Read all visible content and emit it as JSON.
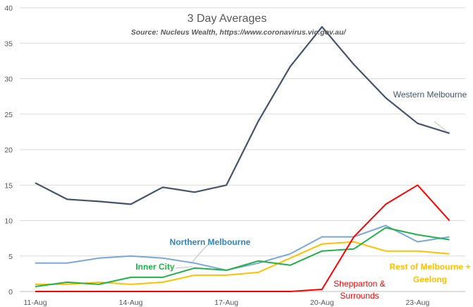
{
  "chart_data": {
    "type": "line",
    "title": "3 Day Averages",
    "subtitle": "Source: Nucleus Wealth, https://www.coronavirus.vic.gov.au/",
    "xlabel": "",
    "ylabel": "",
    "ylim": [
      0,
      40
    ],
    "yticks": [
      "0",
      "5",
      "10",
      "15",
      "20",
      "25",
      "30",
      "35",
      "40"
    ],
    "x_tick_labels": [
      "11-Aug",
      "14-Aug",
      "17-Aug",
      "20-Aug",
      "23-Aug"
    ],
    "x": [
      "11-Aug",
      "12-Aug",
      "13-Aug",
      "14-Aug",
      "15-Aug",
      "16-Aug",
      "17-Aug",
      "18-Aug",
      "19-Aug",
      "20-Aug",
      "21-Aug",
      "22-Aug",
      "23-Aug",
      "24-Aug"
    ],
    "grid": true,
    "legend": "none (direct labels)",
    "series": [
      {
        "name": "Western Melbourne",
        "color": "#44546a",
        "values": [
          15.3,
          13.0,
          12.7,
          12.3,
          14.7,
          14.0,
          15.0,
          24.0,
          31.7,
          37.3,
          32.0,
          27.3,
          23.7,
          22.3
        ]
      },
      {
        "name": "Northern Melbourne",
        "color": "#7ba7d7",
        "values": [
          4.0,
          4.0,
          4.7,
          5.0,
          4.7,
          4.0,
          3.0,
          4.0,
          5.3,
          7.7,
          7.7,
          9.3,
          7.0,
          7.7
        ]
      },
      {
        "name": "Inner City",
        "color": "#22b04b",
        "values": [
          0.7,
          1.3,
          1.0,
          2.0,
          2.0,
          3.3,
          3.0,
          4.3,
          3.7,
          5.7,
          6.0,
          9.0,
          8.0,
          7.3
        ]
      },
      {
        "name": "Rest of Melbourne + Geelong",
        "label_lines": [
          "Rest of Melbourne +",
          "Geelong"
        ],
        "color": "#ffc000",
        "values": [
          1.0,
          1.0,
          1.3,
          1.0,
          1.3,
          2.3,
          2.3,
          2.7,
          4.7,
          6.7,
          7.0,
          5.7,
          5.7,
          5.3
        ]
      },
      {
        "name": "Shepparton & Surrounds",
        "label_lines": [
          "Shepparton &",
          "Surrounds"
        ],
        "color": "#ff0000",
        "values": [
          0,
          0,
          0,
          0,
          0,
          0,
          0,
          0,
          0,
          0.3,
          7.7,
          12.3,
          15.0,
          10.0
        ]
      }
    ]
  }
}
